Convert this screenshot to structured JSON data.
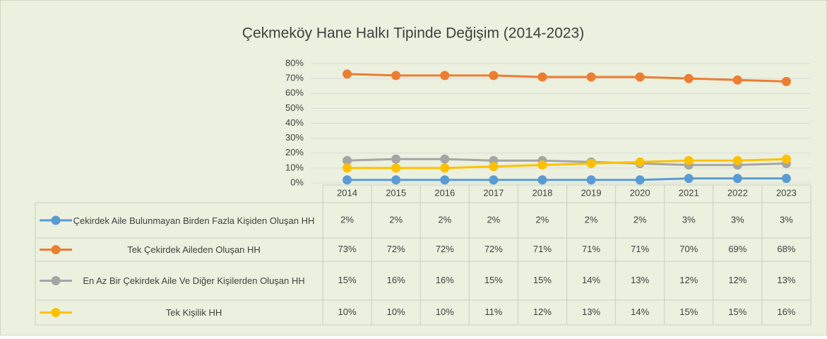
{
  "chart_data": {
    "type": "line",
    "title": "Çekmeköy Hane Halkı Tipinde Değişim (2014-2023)",
    "categories": [
      "2014",
      "2015",
      "2016",
      "2017",
      "2018",
      "2019",
      "2020",
      "2021",
      "2022",
      "2023"
    ],
    "series": [
      {
        "name": "Çekirdek Aile Bulunmayan Birden Fazla Kişiden Oluşan HH",
        "color": "#5b9bd5",
        "values": [
          2,
          2,
          2,
          2,
          2,
          2,
          2,
          3,
          3,
          3
        ],
        "value_labels": [
          "2%",
          "2%",
          "2%",
          "2%",
          "2%",
          "2%",
          "2%",
          "3%",
          "3%",
          "3%"
        ]
      },
      {
        "name": "Tek Çekirdek Aileden Oluşan HH",
        "color": "#ed7d31",
        "values": [
          73,
          72,
          72,
          72,
          71,
          71,
          71,
          70,
          69,
          68
        ],
        "value_labels": [
          "73%",
          "72%",
          "72%",
          "72%",
          "71%",
          "71%",
          "71%",
          "70%",
          "69%",
          "68%"
        ]
      },
      {
        "name": "En Az Bir Çekirdek Aile Ve Diğer Kişilerden Oluşan HH",
        "color": "#a5a5a5",
        "values": [
          15,
          16,
          16,
          15,
          15,
          14,
          13,
          12,
          12,
          13
        ],
        "value_labels": [
          "15%",
          "16%",
          "16%",
          "15%",
          "15%",
          "14%",
          "13%",
          "12%",
          "12%",
          "13%"
        ]
      },
      {
        "name": "Tek Kişilik HH",
        "color": "#ffc000",
        "values": [
          10,
          10,
          10,
          11,
          12,
          13,
          14,
          15,
          15,
          16
        ],
        "value_labels": [
          "10%",
          "10%",
          "10%",
          "11%",
          "12%",
          "13%",
          "14%",
          "15%",
          "15%",
          "16%"
        ]
      }
    ],
    "ylim": [
      0,
      80
    ],
    "yticks": [
      {
        "value": 0,
        "label": "0%"
      },
      {
        "value": 10,
        "label": "10%"
      },
      {
        "value": 20,
        "label": "20%"
      },
      {
        "value": 30,
        "label": "30%"
      },
      {
        "value": 40,
        "label": "40%"
      },
      {
        "value": 50,
        "label": "50%"
      },
      {
        "value": 60,
        "label": "60%"
      },
      {
        "value": 70,
        "label": "70%"
      },
      {
        "value": 80,
        "label": "80%"
      }
    ],
    "grid": true
  }
}
